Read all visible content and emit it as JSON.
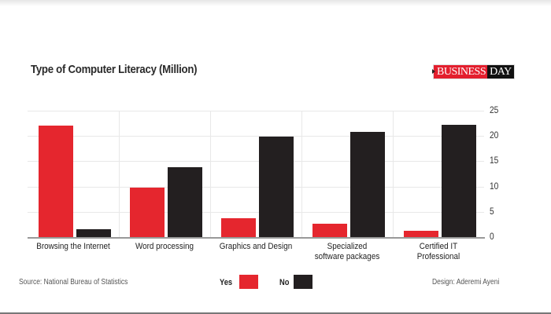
{
  "header": {
    "title": "Type of Computer Literacy (Million)",
    "logo_part1": "BUSINESS",
    "logo_part2": "DAY"
  },
  "footer": {
    "source": "Source: National Bureau of Statistics",
    "design": "Design: Aderemi Ayeni"
  },
  "legend": [
    {
      "label": "Yes",
      "color": "#e5262e"
    },
    {
      "label": "No",
      "color": "#231f20"
    }
  ],
  "axis": {
    "y_ticks": [
      "25",
      "20",
      "15",
      "10",
      "5",
      "0"
    ]
  },
  "chart_data": {
    "type": "bar",
    "title": "Type of Computer Literacy (Million)",
    "categories": [
      "Browsing the Internet",
      "Word processing",
      "Graphics and Design",
      "Specialized software packages",
      "Certified IT Professional"
    ],
    "series": [
      {
        "name": "Yes",
        "color": "#e5262e",
        "values": [
          22.0,
          9.8,
          3.7,
          2.7,
          1.3
        ]
      },
      {
        "name": "No",
        "color": "#231f20",
        "values": [
          1.6,
          13.8,
          19.9,
          20.8,
          22.2
        ]
      }
    ],
    "xlabel": "",
    "ylabel": "",
    "ylim": [
      0,
      25
    ],
    "y_ticks": [
      0,
      5,
      10,
      15,
      20,
      25
    ],
    "y_axis_position": "right",
    "grid": true,
    "legend_position": "bottom",
    "source": "Source: National Bureau of Statistics",
    "credit": "Design: Aderemi Ayeni"
  }
}
